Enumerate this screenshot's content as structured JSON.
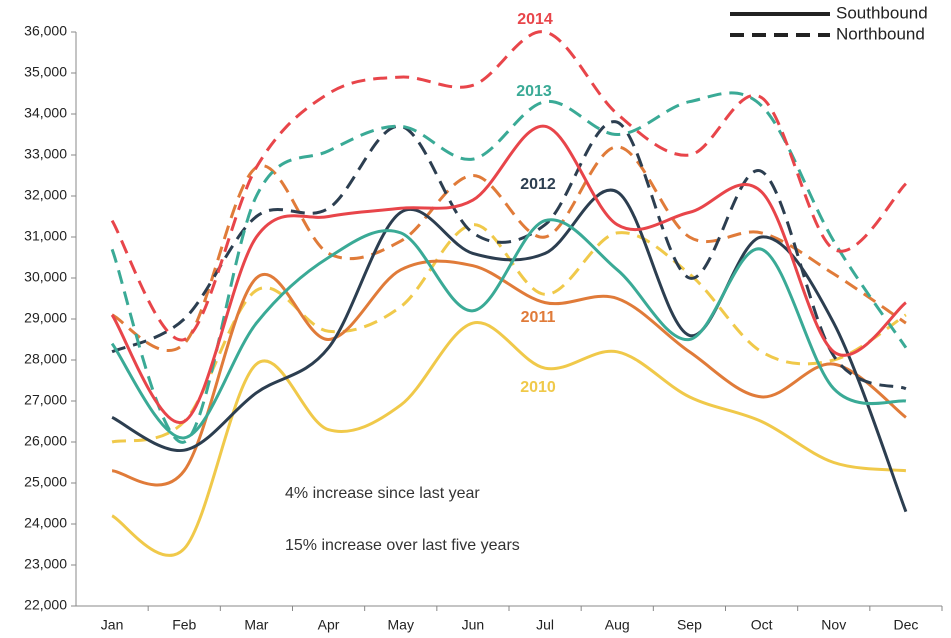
{
  "chart_data": {
    "type": "line",
    "categories": [
      "Jan",
      "Feb",
      "Mar",
      "Apr",
      "May",
      "Jun",
      "Jul",
      "Aug",
      "Sep",
      "Oct",
      "Nov",
      "Dec"
    ],
    "directions": [
      {
        "name": "Southbound",
        "dash": "solid"
      },
      {
        "name": "Northbound",
        "dash": "dashed"
      }
    ],
    "series": [
      {
        "name": "2014",
        "color": "#e8454a",
        "values": [
          [
            29100,
            26500,
            31000,
            31500,
            31700,
            31900,
            33700,
            31300,
            31600,
            32100,
            28200,
            29400
          ],
          [
            31400,
            28500,
            32700,
            34500,
            34900,
            34700,
            36000,
            34000,
            33000,
            34400,
            30700,
            32300
          ]
        ]
      },
      {
        "name": "2013",
        "color": "#3aaa96",
        "values": [
          [
            28400,
            26100,
            28900,
            30500,
            31100,
            29200,
            31400,
            30200,
            28500,
            30700,
            27300,
            27000
          ],
          [
            30700,
            26000,
            32000,
            33100,
            33700,
            32900,
            34300,
            33500,
            34300,
            34200,
            30900,
            28300
          ]
        ]
      },
      {
        "name": "2012",
        "color": "#2c3e50",
        "values": [
          [
            26600,
            25800,
            27200,
            28300,
            31600,
            30600,
            30600,
            32100,
            28600,
            31000,
            28900,
            24300
          ],
          [
            28200,
            29000,
            31500,
            31700,
            33700,
            31100,
            31300,
            33800,
            30000,
            32600,
            28100,
            27300
          ]
        ]
      },
      {
        "name": "2011",
        "color": "#e07b39",
        "values": [
          [
            25300,
            25300,
            30000,
            28500,
            30200,
            30300,
            29400,
            29500,
            28200,
            27100,
            27900,
            26600
          ],
          [
            29100,
            28400,
            32700,
            30600,
            30900,
            32500,
            31000,
            33200,
            31000,
            31100,
            30100,
            28900
          ]
        ]
      },
      {
        "name": "2010",
        "color": "#f0c94a",
        "values": [
          [
            24200,
            23400,
            27900,
            26300,
            26900,
            28900,
            27800,
            28200,
            27100,
            26500,
            25500,
            25300
          ],
          [
            26000,
            26500,
            29700,
            28700,
            29300,
            31300,
            29600,
            31100,
            30100,
            28200,
            28000,
            29100
          ]
        ]
      }
    ],
    "annotations": [
      "4% increase since last year",
      "15% increase over last five years"
    ],
    "ylim": [
      22000,
      36000
    ],
    "yticks": [
      {
        "value": 22000,
        "label": "22,000"
      },
      {
        "value": 23000,
        "label": "23,000"
      },
      {
        "value": 24000,
        "label": "24,000"
      },
      {
        "value": 25000,
        "label": "25,000"
      },
      {
        "value": 26000,
        "label": "26,000"
      },
      {
        "value": 27000,
        "label": "27,000"
      },
      {
        "value": 28000,
        "label": "28,000"
      },
      {
        "value": 29000,
        "label": "29,000"
      },
      {
        "value": 30000,
        "label": "30,000"
      },
      {
        "value": 31000,
        "label": "31,000"
      },
      {
        "value": 32000,
        "label": "32,000"
      },
      {
        "value": 33000,
        "label": "33,000"
      },
      {
        "value": 34000,
        "label": "34,000"
      },
      {
        "value": 35000,
        "label": "35,000"
      },
      {
        "value": 36000,
        "label": "36,000"
      }
    ],
    "legend": "upper right"
  }
}
